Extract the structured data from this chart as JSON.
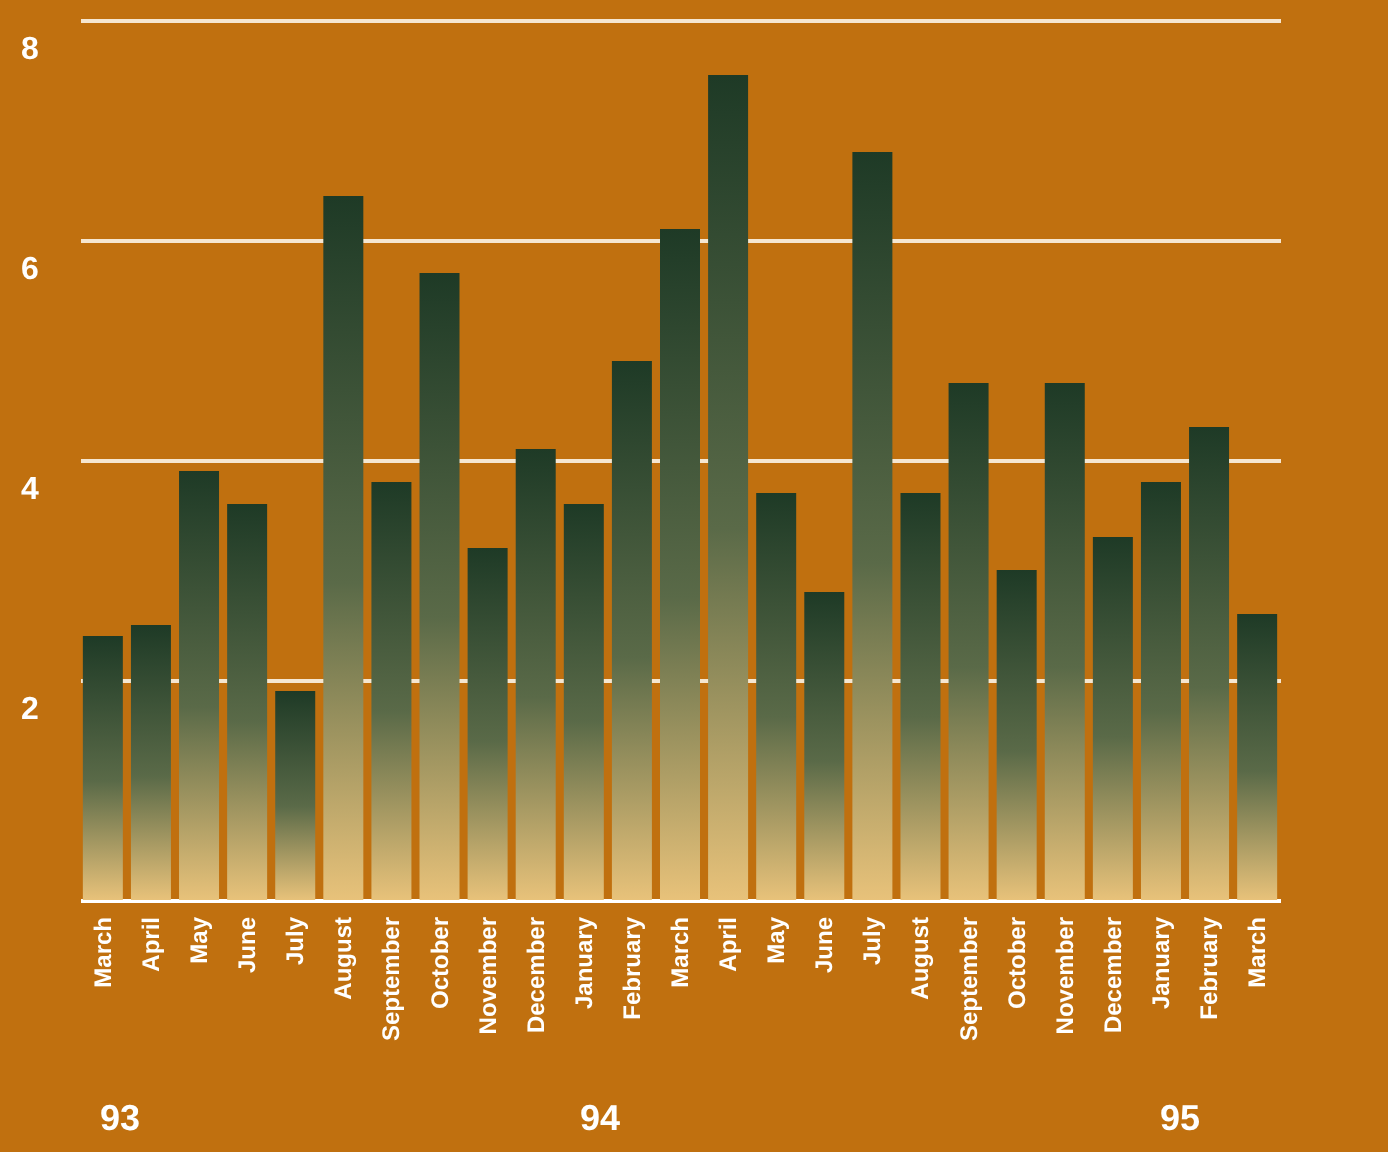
{
  "chart_data": {
    "type": "bar",
    "categories": [
      "March",
      "April",
      "May",
      "June",
      "July",
      "August",
      "September",
      "October",
      "November",
      "December",
      "January",
      "February",
      "March",
      "April",
      "May",
      "June",
      "July",
      "August",
      "September",
      "October",
      "November",
      "December",
      "January",
      "February",
      "March"
    ],
    "values": [
      2.4,
      2.5,
      3.9,
      3.6,
      1.9,
      6.4,
      3.8,
      5.7,
      3.2,
      4.1,
      3.6,
      4.9,
      6.1,
      7.5,
      3.7,
      2.8,
      6.8,
      3.7,
      4.7,
      3.0,
      4.7,
      3.3,
      3.8,
      4.3,
      2.6
    ],
    "color": "#1e3a26",
    "ylim": [
      0,
      8
    ],
    "yticks": [
      2,
      4,
      6,
      8
    ],
    "grid": "y",
    "annotations": [
      "93",
      "94",
      "95"
    ]
  }
}
